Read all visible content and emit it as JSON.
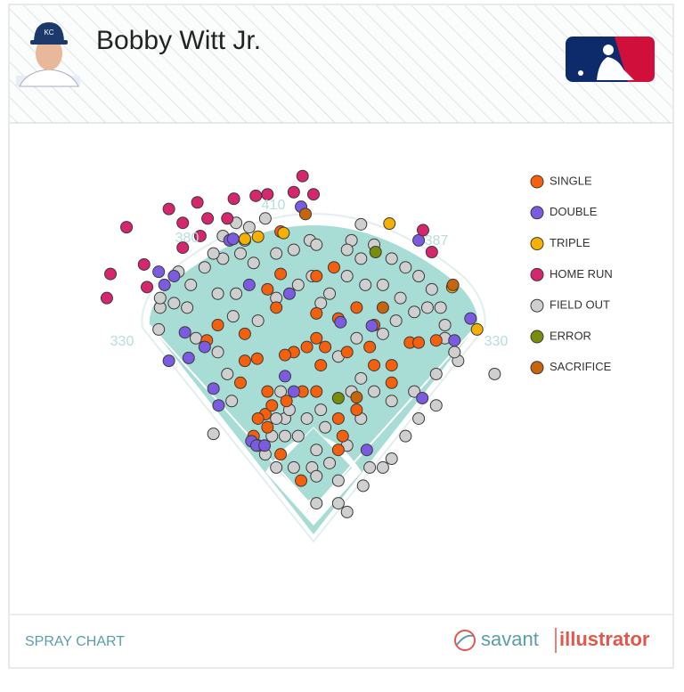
{
  "chart_data": {
    "type": "scatter",
    "title": "Bobby Witt Jr.",
    "annotations": [
      "330",
      "380",
      "410",
      "387",
      "330"
    ],
    "footer_label": "SPRAY CHART",
    "brand": [
      "savant",
      "illustrator"
    ],
    "xlim": [
      -300,
      300
    ],
    "ylim": [
      -20,
      470
    ],
    "series": [
      {
        "name": "FIELD OUT",
        "color": "#cfcfcf",
        "x": [
          -66,
          -5,
          65,
          52,
          83,
          107,
          126,
          144,
          162,
          174,
          180,
          198,
          248,
          168,
          138,
          168,
          126,
          107,
          95,
          77,
          68,
          46,
          34,
          4,
          -2,
          4,
          16,
          -21,
          -39,
          -57,
          -66,
          -51,
          -27,
          -137,
          -112,
          -118,
          -131,
          -161,
          -173,
          -191,
          -210,
          -212,
          -168,
          -149,
          -124,
          -100,
          -106,
          -131,
          -110,
          -76,
          -51,
          -21,
          -2,
          22,
          10,
          46,
          71,
          95,
          119,
          138,
          156,
          113,
          95,
          59,
          34,
          65,
          83,
          65,
          46,
          22,
          4,
          34,
          -45,
          -33,
          -51,
          -9,
          -39,
          10,
          52,
          107,
          144,
          180,
          193,
          65,
          46,
          4,
          -27,
          -51,
          -82,
          -94,
          -88,
          -106,
          -124,
          -137,
          -185,
          -210
        ],
        "y": [
          396,
          366,
          388,
          366,
          360,
          341,
          329,
          317,
          299,
          274,
          250,
          201,
          183,
          183,
          159,
          140,
          98,
          67,
          55,
          55,
          30,
          -6,
          6,
          6,
          55,
          79,
          110,
          98,
          122,
          98,
          73,
          55,
          55,
          101,
          146,
          183,
          213,
          232,
          274,
          280,
          274,
          244,
          305,
          329,
          341,
          348,
          293,
          293,
          262,
          256,
          287,
          305,
          317,
          293,
          280,
          317,
          305,
          305,
          287,
          268,
          274,
          256,
          238,
          232,
          207,
          177,
          159,
          122,
          85,
          61,
          43,
          37,
          159,
          134,
          122,
          122,
          98,
          134,
          159,
          146,
          122,
          232,
          213,
          341,
          353,
          360,
          353,
          348,
          335,
          366,
          384,
          390,
          372,
          348,
          323,
          287
        ]
      },
      {
        "name": "SINGLE",
        "color": "#f5600c",
        "x": [
          -77,
          -94,
          -131,
          -146,
          -100,
          -66,
          -57,
          -76,
          -82,
          -63,
          -45,
          -17,
          -37,
          -15,
          4,
          34,
          40,
          34,
          59,
          -9,
          4,
          16,
          46,
          77,
          107,
          132,
          144,
          168,
          59,
          83,
          34,
          -45,
          -63,
          -51,
          -27,
          -39,
          10,
          -94,
          4,
          28,
          -45,
          83,
          107,
          -63,
          -76,
          4
        ],
        "y": [
          204,
          201,
          250,
          229,
          171,
          128,
          140,
          122,
          98,
          110,
          73,
          37,
          146,
          159,
          159,
          122,
          98,
          79,
          134,
          220,
          232,
          220,
          213,
          220,
          171,
          226,
          226,
          229,
          274,
          250,
          259,
          320,
          299,
          274,
          213,
          209,
          195,
          238,
          317,
          329,
          378,
          195,
          195,
          159,
          85,
          266
        ]
      },
      {
        "name": "DOUBLE",
        "color": "#7b5ce0",
        "x": [
          -17,
          -115,
          -191,
          -212,
          -204,
          -176,
          -198,
          -171,
          -137,
          -130,
          -85,
          -78,
          -67,
          144,
          215,
          193,
          149,
          73,
          80,
          37,
          -33,
          -39,
          -27,
          -88,
          -149,
          -110
        ],
        "y": [
          412,
          366,
          317,
          323,
          305,
          240,
          201,
          205,
          163,
          140,
          91,
          85,
          85,
          366,
          259,
          229,
          150,
          79,
          249,
          254,
          293,
          180,
          159,
          305,
          220,
          368
        ]
      },
      {
        "name": "TRIPLE",
        "color": "#f5b000",
        "x": [
          104,
          -94,
          -76,
          190,
          224,
          -41
        ],
        "y": [
          389,
          368,
          371,
          302,
          244,
          376
        ]
      },
      {
        "name": "HOME RUN",
        "color": "#d6266e",
        "x": [
          -15,
          0,
          -27,
          -63,
          -79,
          -109,
          -159,
          -198,
          -179,
          -145,
          -118,
          -256,
          -278,
          -283,
          -228,
          -232,
          -155,
          -179,
          150,
          162
        ],
        "y": [
          454,
          429,
          432,
          429,
          427,
          423,
          418,
          409,
          390,
          396,
          396,
          384,
          320,
          287,
          302,
          333,
          372,
          356,
          380,
          350
        ]
      },
      {
        "name": "ERROR",
        "color": "#7a8c0c",
        "x": [
          34,
          85
        ],
        "y": [
          150,
          350
        ]
      },
      {
        "name": "SACRIFICE",
        "color": "#c8640c",
        "x": [
          -11,
          191,
          95,
          59
        ],
        "y": [
          402,
          305,
          274,
          151
        ]
      }
    ]
  }
}
